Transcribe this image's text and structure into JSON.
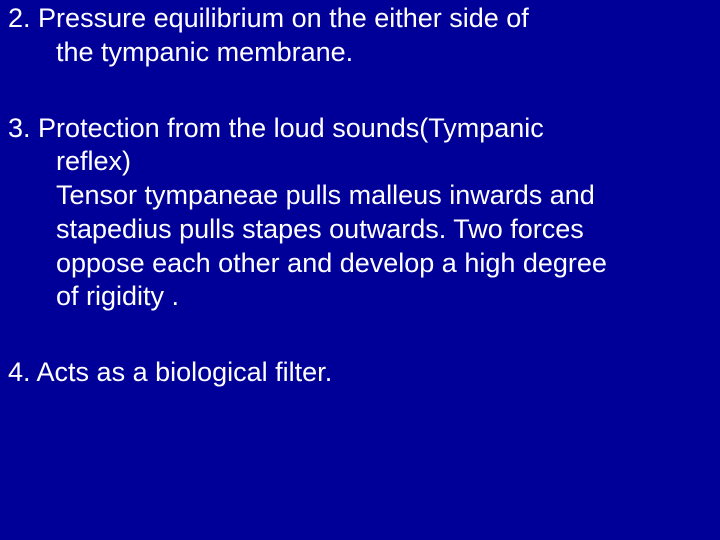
{
  "slide": {
    "background_color": "#000099",
    "text_color": "#ffffff",
    "font_family": "Comic Sans MS",
    "font_size_pt": 20,
    "items": [
      {
        "number": "2.",
        "lines": [
          "Pressure equilibrium on the either side of",
          "the tympanic membrane."
        ]
      },
      {
        "number": "3.",
        "lines": [
          "Protection from the loud sounds(Tympanic",
          "reflex)",
          "Tensor tympaneae pulls malleus inwards and",
          "stapedius pulls stapes outwards. Two forces",
          "oppose each other and develop a high degree",
          "of rigidity ."
        ]
      },
      {
        "number": "4.",
        "lines": [
          "Acts as a biological filter."
        ]
      }
    ]
  }
}
